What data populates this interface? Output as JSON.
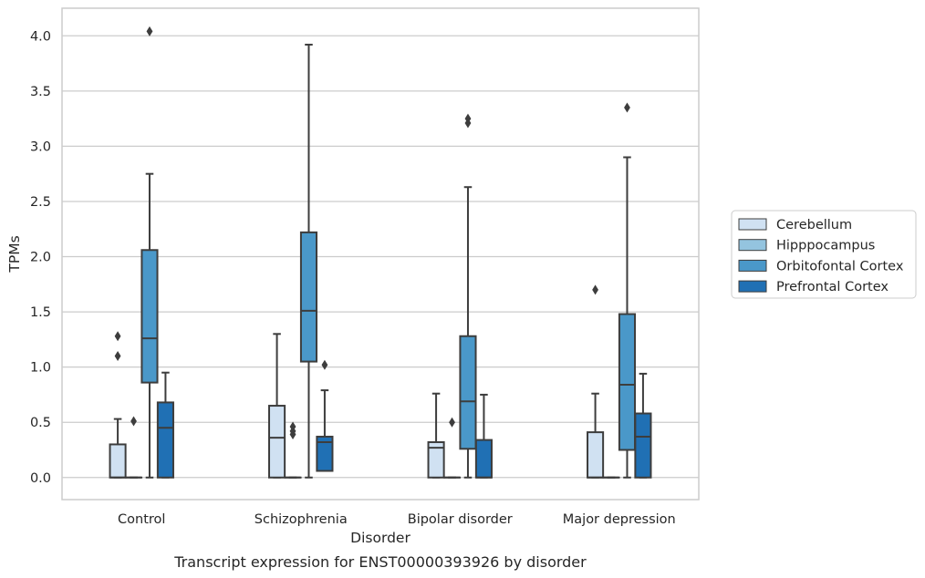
{
  "chart_data": {
    "type": "box",
    "xlabel": "Disorder",
    "ylabel": "TPMs",
    "caption": "Transcript expression for ENST00000393926 by disorder",
    "ylim": [
      -0.2,
      4.25
    ],
    "yticks": [
      0.0,
      0.5,
      1.0,
      1.5,
      2.0,
      2.5,
      3.0,
      3.5,
      4.0
    ],
    "ytick_labels": [
      "0.0",
      "0.5",
      "1.0",
      "1.5",
      "2.0",
      "2.5",
      "3.0",
      "3.5",
      "4.0"
    ],
    "grid": true,
    "legend_position": "right-center",
    "categories": [
      "Control",
      "Schizophrenia",
      "Bipolar disorder",
      "Major depression"
    ],
    "series": [
      {
        "name": "Cerebellum",
        "color": "#d0e1f2",
        "boxes": [
          {
            "whisker_low": 0.0,
            "q1": 0.0,
            "median": 0.0,
            "q3": 0.3,
            "whisker_high": 0.53,
            "outliers": [
              1.1,
              1.28
            ]
          },
          {
            "whisker_low": 0.0,
            "q1": 0.0,
            "median": 0.36,
            "q3": 0.65,
            "whisker_high": 1.3,
            "outliers": []
          },
          {
            "whisker_low": 0.0,
            "q1": 0.0,
            "median": 0.27,
            "q3": 0.32,
            "whisker_high": 0.76,
            "outliers": []
          },
          {
            "whisker_low": 0.0,
            "q1": 0.0,
            "median": 0.0,
            "q3": 0.41,
            "whisker_high": 0.76,
            "outliers": [
              1.7
            ]
          }
        ]
      },
      {
        "name": "Hipppocampus",
        "color": "#94c4df",
        "boxes": [
          {
            "whisker_low": 0.0,
            "q1": 0.0,
            "median": 0.0,
            "q3": 0.0,
            "whisker_high": 0.0,
            "outliers": [
              0.51
            ]
          },
          {
            "whisker_low": 0.0,
            "q1": 0.0,
            "median": 0.0,
            "q3": 0.0,
            "whisker_high": 0.0,
            "outliers": [
              0.39,
              0.42,
              0.46
            ]
          },
          {
            "whisker_low": 0.0,
            "q1": 0.0,
            "median": 0.0,
            "q3": 0.0,
            "whisker_high": 0.0,
            "outliers": [
              0.5
            ]
          },
          {
            "whisker_low": 0.0,
            "q1": 0.0,
            "median": 0.0,
            "q3": 0.0,
            "whisker_high": 0.0,
            "outliers": []
          }
        ]
      },
      {
        "name": "Orbitofontal Cortex",
        "color": "#4a98c9",
        "boxes": [
          {
            "whisker_low": 0.0,
            "q1": 0.86,
            "median": 1.26,
            "q3": 2.06,
            "whisker_high": 2.75,
            "outliers": [
              4.04
            ]
          },
          {
            "whisker_low": 0.0,
            "q1": 1.05,
            "median": 1.51,
            "q3": 2.22,
            "whisker_high": 3.92,
            "outliers": []
          },
          {
            "whisker_low": 0.0,
            "q1": 0.26,
            "median": 0.69,
            "q3": 1.28,
            "whisker_high": 2.63,
            "outliers": [
              3.21,
              3.25
            ]
          },
          {
            "whisker_low": 0.0,
            "q1": 0.25,
            "median": 0.84,
            "q3": 1.48,
            "whisker_high": 2.9,
            "outliers": [
              3.35
            ]
          }
        ]
      },
      {
        "name": "Prefrontal Cortex",
        "color": "#2070b4",
        "boxes": [
          {
            "whisker_low": 0.0,
            "q1": 0.0,
            "median": 0.45,
            "q3": 0.68,
            "whisker_high": 0.95,
            "outliers": []
          },
          {
            "whisker_low": 0.06,
            "q1": 0.06,
            "median": 0.32,
            "q3": 0.37,
            "whisker_high": 0.79,
            "outliers": [
              1.02
            ]
          },
          {
            "whisker_low": 0.0,
            "q1": 0.0,
            "median": 0.0,
            "q3": 0.34,
            "whisker_high": 0.75,
            "outliers": []
          },
          {
            "whisker_low": 0.0,
            "q1": 0.0,
            "median": 0.37,
            "q3": 0.58,
            "whisker_high": 0.94,
            "outliers": []
          }
        ]
      }
    ]
  }
}
